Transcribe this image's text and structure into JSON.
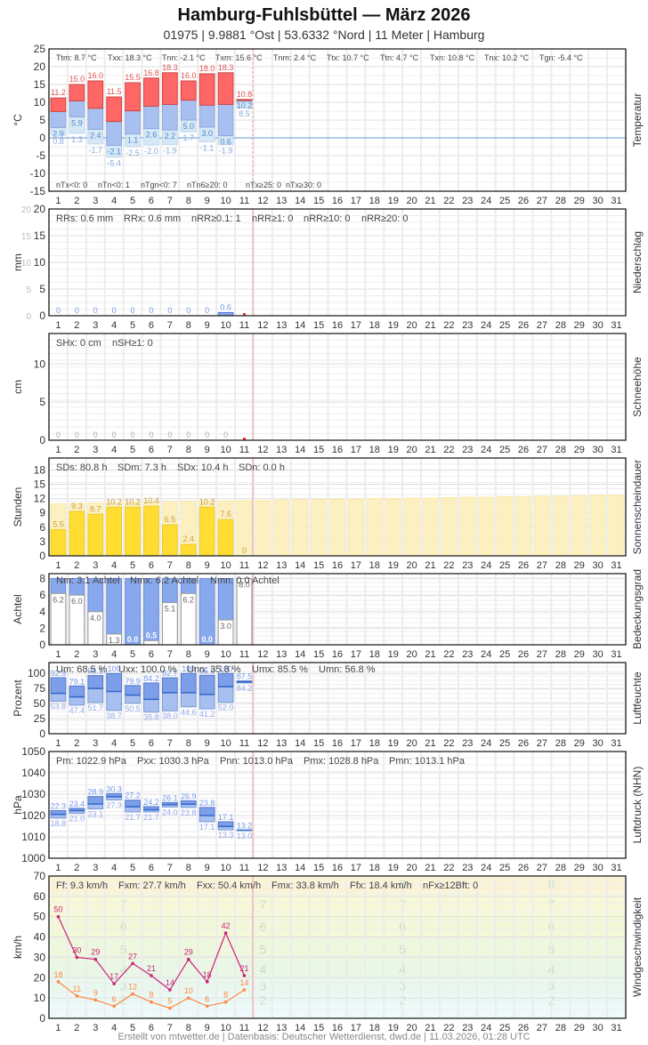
{
  "header": {
    "title": "Hamburg-Fuhlsbüttel  —  März 2026",
    "subtitle": "01975  |  9.9881 °Ost  |  53.6332 °Nord  |  11 Meter  |  Hamburg"
  },
  "footer": "Erstellt von mtwetter.de | Datenbasis: Deutscher Wetterdienst, dwd.de | 11.03.2026, 01:28 UTC",
  "colors": {
    "temp_max": "#ff6666",
    "temp_mean": "#a8c0f0",
    "temp_min": "#d6e8f6",
    "precip": "#88a8ec",
    "sun": "#ffdd33",
    "sun_possible": "#fdf0c0",
    "cloud": "#88a8ec",
    "humidity": "#88a8ec",
    "pressure": "#88a8ec",
    "wind_gust": "#cc2277",
    "wind_mean": "#ff8844",
    "today_line": "#f0a0a0",
    "grid": "#e6e6e6"
  },
  "days": [
    1,
    2,
    3,
    4,
    5,
    6,
    7,
    8,
    9,
    10,
    11,
    12,
    13,
    14,
    15,
    16,
    17,
    18,
    19,
    20,
    21,
    22,
    23,
    24,
    25,
    26,
    27,
    28,
    29,
    30,
    31
  ],
  "chart_data": [
    {
      "type": "bar",
      "id": "temperature",
      "title": "Temperatur",
      "ylabel": "°C",
      "ylim": [
        -15,
        25
      ],
      "yticks": [
        25,
        20,
        15,
        10,
        5,
        0,
        -5,
        -10,
        -15
      ],
      "categories": [
        1,
        2,
        3,
        4,
        5,
        6,
        7,
        8,
        9,
        10,
        11
      ],
      "series": [
        {
          "name": "Tx (max)",
          "values": [
            11.2,
            15.0,
            16.0,
            11.5,
            15.5,
            16.8,
            18.3,
            16.0,
            18.0,
            18.3,
            10.8
          ]
        },
        {
          "name": "Tm (mean)",
          "values": [
            7.4,
            10.4,
            8.3,
            4.6,
            7.6,
            8.9,
            9.4,
            10.6,
            9.2,
            9.4,
            10.5
          ]
        },
        {
          "name": "Tn (min)",
          "values": [
            2.9,
            5.9,
            2.4,
            -2.1,
            1.1,
            2.6,
            2.2,
            5.0,
            3.0,
            0.6,
            10.2
          ]
        },
        {
          "name": "Tgn (ground min)",
          "values": [
            0.8,
            1.3,
            -1.7,
            -5.4,
            -2.5,
            -2.0,
            -1.9,
            1.7,
            -1.1,
            -1.9,
            8.5
          ]
        }
      ],
      "stats_top": [
        "Ttm: 8.7 °C",
        "Txx: 18.3 °C",
        "Tnn: -2.1 °C",
        "Txm: 15.6 °C",
        "Tnm: 2.4 °C",
        "Ttx: 10.7 °C",
        "Ttn: 4.7 °C",
        "Txn: 10.8 °C",
        "Tnx: 10.2 °C",
        "Tgn: -5.4 °C"
      ],
      "stats_bottom": [
        "nTx<0: 0",
        "nTn<0: 1",
        "nTgn<0: 7",
        "nTn6≥20: 0",
        "nTx≥25: 0",
        "nTx≥30: 0"
      ]
    },
    {
      "type": "bar",
      "id": "precipitation",
      "title": "Niederschlag",
      "ylabel": "mm",
      "ylim": [
        0,
        20
      ],
      "yticks": [
        20,
        15,
        10,
        5,
        0
      ],
      "categories": [
        1,
        2,
        3,
        4,
        5,
        6,
        7,
        8,
        9,
        10
      ],
      "values": [
        0,
        0,
        0,
        0,
        0,
        0,
        0,
        0,
        0,
        0.6
      ],
      "stats_top": [
        "RRs: 0.6 mm",
        "RRx: 0.6 mm",
        "nRR≥0.1: 1",
        "nRR≥1: 0",
        "nRR≥10: 0",
        "nRR≥20: 0"
      ]
    },
    {
      "type": "bar",
      "id": "snow",
      "title": "Schneehöhe",
      "ylabel": "cm",
      "ylim": [
        0,
        14
      ],
      "yticks": [
        10,
        5,
        0
      ],
      "categories": [
        1,
        2,
        3,
        4,
        5,
        6,
        7,
        8,
        9,
        10
      ],
      "values": [
        0,
        0,
        0,
        0,
        0,
        0,
        0,
        0,
        0,
        0
      ],
      "stats_top": [
        "SHx: 0 cm",
        "nSH≥1: 0"
      ]
    },
    {
      "type": "bar",
      "id": "sunshine",
      "title": "Sonnenscheindauer",
      "ylabel": "Stunden",
      "ylim": [
        0,
        20.5
      ],
      "yticks": [
        18,
        15,
        12,
        9,
        6,
        3,
        0
      ],
      "categories": [
        1,
        2,
        3,
        4,
        5,
        6,
        7,
        8,
        9,
        10,
        11
      ],
      "values": [
        5.5,
        9.3,
        8.7,
        10.2,
        10.2,
        10.4,
        6.5,
        2.4,
        10.2,
        7.6,
        0
      ],
      "possible": [
        10.9,
        11.0,
        11.1,
        11.1,
        11.2,
        11.3,
        11.3,
        11.4,
        11.5,
        11.5,
        11.6,
        11.6,
        11.7,
        11.8,
        11.8,
        11.9,
        11.9,
        12.0,
        12.0,
        12.1,
        12.1,
        12.2,
        12.3,
        12.3,
        12.4,
        12.4,
        12.5,
        12.5,
        12.6,
        12.7,
        12.7
      ],
      "stats_top": [
        "SDs: 80.8 h",
        "SDm: 7.3 h",
        "SDx: 10.4 h",
        "SDn: 0.0 h"
      ]
    },
    {
      "type": "bar",
      "id": "cloud_cover",
      "title": "Bedeckungsgrad",
      "ylabel": "Achtel",
      "ylim": [
        0,
        8.6
      ],
      "yticks": [
        8,
        6,
        4,
        2,
        0
      ],
      "categories": [
        1,
        2,
        3,
        4,
        5,
        6,
        7,
        8,
        9,
        10,
        11
      ],
      "values": [
        6.2,
        6.0,
        4.0,
        1.3,
        0.0,
        0.5,
        5.1,
        6.2,
        0.0,
        3.0,
        8.0
      ],
      "stats_top": [
        "Nm: 3.1 Achtel",
        "Nmx: 6.2 Achtel",
        "Nmn: 0.0 Achtel"
      ]
    },
    {
      "type": "bar",
      "id": "humidity",
      "title": "Luftfeuchte",
      "ylabel": "Prozent",
      "ylim": [
        0,
        118
      ],
      "yticks": [
        100,
        75,
        50,
        25,
        0
      ],
      "categories": [
        1,
        2,
        3,
        4,
        5,
        6,
        7,
        8,
        9,
        10,
        11
      ],
      "series": [
        {
          "name": "Ux (max)",
          "values": [
            92.9,
            79.1,
            96.5,
            100,
            79.9,
            84.2,
            92.7,
            100,
            96.9,
            100,
            87.5
          ]
        },
        {
          "name": "Um (mean)",
          "values": [
            67,
            61,
            75,
            70,
            64,
            57,
            68,
            68,
            65,
            78,
            86
          ]
        },
        {
          "name": "Un (min)",
          "values": [
            53.8,
            47.4,
            51.7,
            38.7,
            50.5,
            35.8,
            38.0,
            44.6,
            41.2,
            52.0,
            84.2
          ]
        }
      ],
      "stats_top": [
        "Um: 68.5 %",
        "Uxx: 100.0 %",
        "Unn: 35.8 %",
        "Umx: 85.5 %",
        "Umn: 56.8 %"
      ]
    },
    {
      "type": "bar",
      "id": "pressure",
      "title": "Luftdruck (NHN)",
      "ylabel": "hPa",
      "ylim": [
        1000,
        1050
      ],
      "yticks": [
        1050,
        1040,
        1030,
        1020,
        1010,
        1000
      ],
      "categories": [
        1,
        2,
        3,
        4,
        5,
        6,
        7,
        8,
        9,
        10,
        11
      ],
      "series": [
        {
          "name": "Px (max)",
          "values": [
            22.3,
            23.4,
            28.9,
            30.3,
            27.2,
            24.2,
            26.1,
            26.9,
            23.8,
            17.1,
            13.2
          ]
        },
        {
          "name": "Pm (mean)",
          "values": [
            20.5,
            22.3,
            25.4,
            28.8,
            24.1,
            22.7,
            25.1,
            25.3,
            20.0,
            14.9,
            13.1
          ]
        },
        {
          "name": "Pn (min)",
          "values": [
            18.8,
            21.0,
            23.1,
            27.3,
            21.7,
            21.7,
            24.0,
            23.8,
            17.1,
            13.3,
            13.0
          ]
        }
      ],
      "value_offset": 1000,
      "stats_top": [
        "Pm: 1022.9 hPa",
        "Pxx: 1030.3 hPa",
        "Pnn: 1013.0 hPa",
        "Pmx: 1028.8 hPa",
        "Pmn: 1013.1 hPa"
      ]
    },
    {
      "type": "line",
      "id": "wind",
      "title": "Windgeschwindigkeit",
      "ylabel": "km/h",
      "ylim": [
        0,
        70
      ],
      "yticks": [
        70,
        60,
        50,
        40,
        30,
        20,
        10,
        0
      ],
      "categories": [
        1,
        2,
        3,
        4,
        5,
        6,
        7,
        8,
        9,
        10,
        11
      ],
      "series": [
        {
          "name": "Fx (gust)",
          "values": [
            50,
            30,
            29,
            17,
            27,
            21,
            14,
            29,
            18,
            42,
            21
          ]
        },
        {
          "name": "Fm (mean)",
          "values": [
            18,
            11,
            9,
            6,
            12,
            8,
            5,
            10,
            6,
            8,
            14
          ]
        }
      ],
      "beaufort_labels": [
        "2",
        "3",
        "4",
        "5",
        "6",
        "7",
        "8"
      ],
      "stats_top": [
        "Ff: 9.3 km/h",
        "Fxm: 27.7 km/h",
        "Fxx: 50.4 km/h",
        "Fmx: 33.8 km/h",
        "Ffx: 18.4 km/h",
        "nFx≥12Bft: 0"
      ]
    }
  ]
}
